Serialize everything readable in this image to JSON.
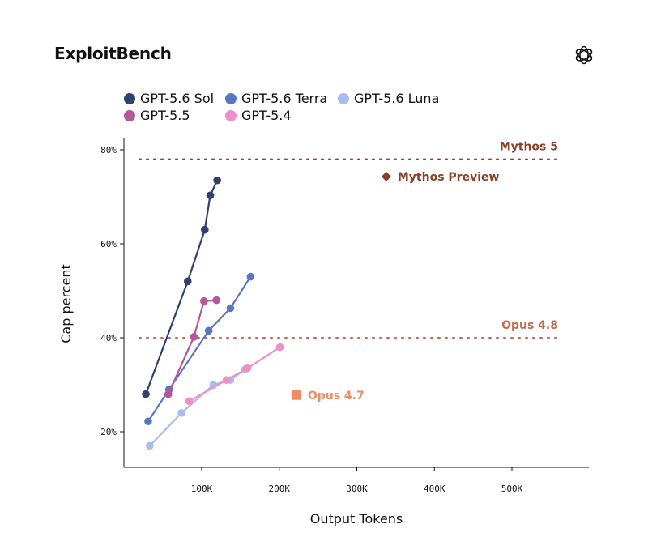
{
  "page": {
    "title": "ExploitBench"
  },
  "colors": {
    "sol": "#2e4272",
    "terra": "#5876c4",
    "luna": "#a8bcf0",
    "gpt55": "#b5559a",
    "gpt54": "#ef8fc8",
    "mythos": "#8a3f2a",
    "opus48": "#c46a4a",
    "opus47": "#f08c62"
  },
  "chart_data": {
    "type": "scatter",
    "title": "ExploitBench",
    "xlabel": "Output Tokens",
    "ylabel": "Cap percent",
    "xlim": [
      -10000,
      500000
    ],
    "ylim": [
      12,
      82
    ],
    "x_ticks": [
      100000,
      200000,
      300000,
      400000,
      500000
    ],
    "x_tick_labels": [
      "100K",
      "200K",
      "300K",
      "400K",
      "500K"
    ],
    "y_ticks": [
      20,
      40,
      60,
      80
    ],
    "y_tick_labels": [
      "20%",
      "40%",
      "60%",
      "80%"
    ],
    "grid": false,
    "legend_position": "top",
    "series": [
      {
        "name": "GPT-5.6 Sol",
        "color_key": "sol",
        "x": [
          28000,
          82000,
          104000,
          111000,
          120000
        ],
        "y": [
          28,
          52,
          63,
          70.3,
          73.5
        ]
      },
      {
        "name": "GPT-5.6 Terra",
        "color_key": "terra",
        "x": [
          31000,
          58000,
          109000,
          137000,
          163000
        ],
        "y": [
          22.2,
          29,
          41.5,
          46.3,
          53
        ]
      },
      {
        "name": "GPT-5.6 Luna",
        "color_key": "luna",
        "x": [
          33000,
          74000,
          115000,
          137000,
          156000
        ],
        "y": [
          17,
          24,
          30,
          31,
          33.3
        ]
      },
      {
        "name": "GPT-5.5",
        "color_key": "gpt55",
        "x": [
          57000,
          90000,
          103000,
          119000
        ],
        "y": [
          28,
          40.2,
          47.8,
          48
        ]
      },
      {
        "name": "GPT-5.4",
        "color_key": "gpt54",
        "x": [
          84000,
          132000,
          159000,
          201000
        ],
        "y": [
          26.5,
          31,
          33.5,
          38
        ]
      }
    ],
    "reference_lines": [
      {
        "label": "Mythos 5",
        "y": 78,
        "color_key": "mythos"
      },
      {
        "label": "Opus 4.8",
        "y": 40,
        "color_key": "opus48"
      }
    ],
    "markers": [
      {
        "label": "Mythos Preview",
        "x": 338000,
        "y": 74.3,
        "shape": "diamond",
        "color_key": "mythos"
      },
      {
        "label": "Opus 4.7",
        "x": 222000,
        "y": 27.8,
        "shape": "square",
        "color_key": "opus47"
      }
    ]
  }
}
